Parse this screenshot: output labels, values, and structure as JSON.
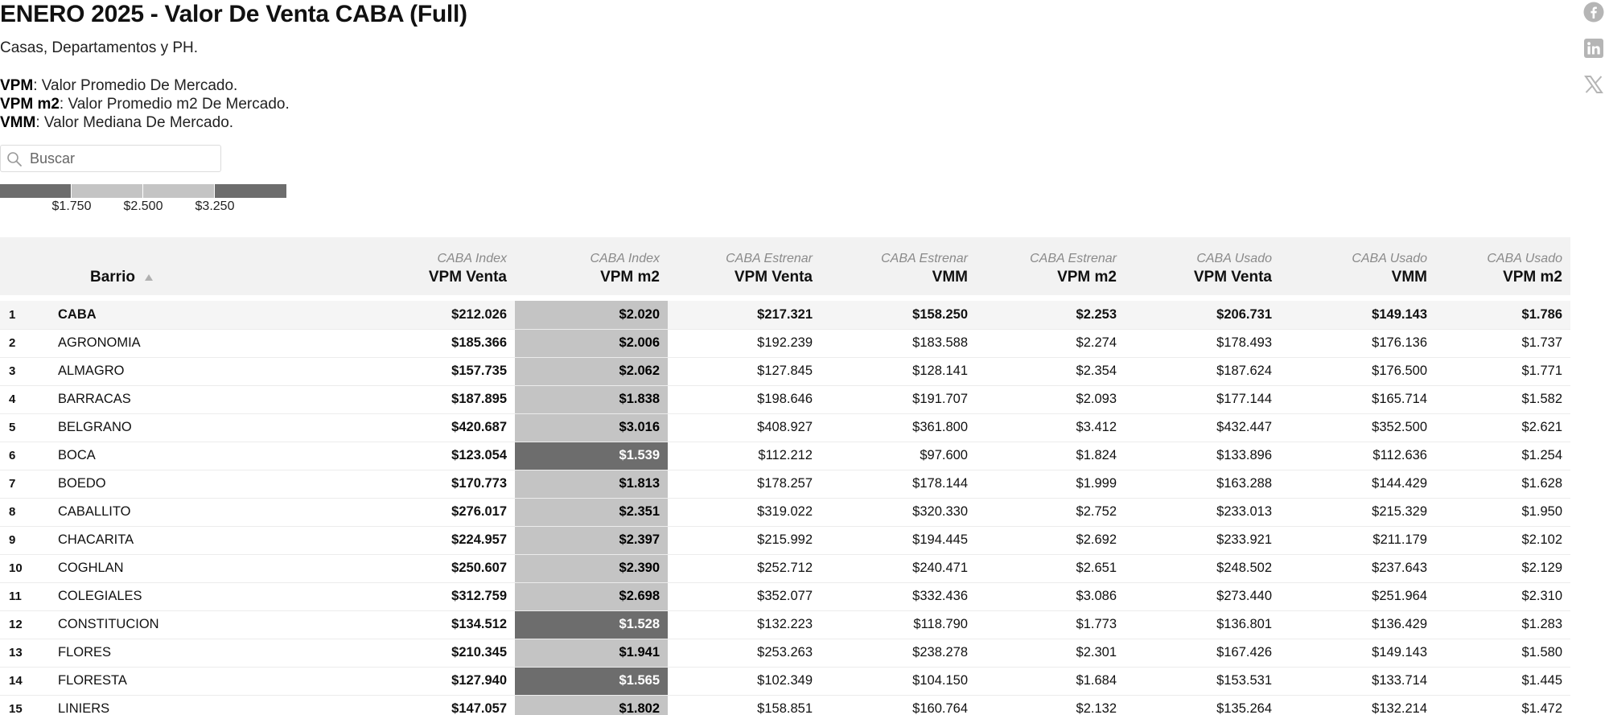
{
  "title": "ENERO 2025 - Valor De Venta CABA (Full)",
  "subtitle": "Casas, Departamentos y PH.",
  "notes": [
    {
      "abbr": "VPM",
      "text": ": Valor Promedio De Mercado."
    },
    {
      "abbr": "VPM m2",
      "text": ": Valor Promedio m2 De Mercado."
    },
    {
      "abbr": "VMM",
      "text": ": Valor Mediana De Mercado."
    }
  ],
  "search": {
    "placeholder": "Buscar",
    "value": ""
  },
  "legend": {
    "colors": [
      "#6d6d6d",
      "#c4c4c4",
      "#c4c4c4",
      "#6d6d6d"
    ],
    "labels": [
      "$1.750",
      "$2.500",
      "$3.250"
    ]
  },
  "social_icons": [
    "facebook-icon",
    "linkedin-icon",
    "x-icon"
  ],
  "table": {
    "columns": [
      {
        "sup": "",
        "label": ""
      },
      {
        "sup": "",
        "label": "Barrio",
        "sort_icon": "sort-up-icon"
      },
      {
        "sup": "CABA Index",
        "label": "VPM Venta"
      },
      {
        "sup": "CABA Index",
        "label": "VPM m2"
      },
      {
        "sup": "CABA Estrenar",
        "label": "VPM Venta"
      },
      {
        "sup": "CABA Estrenar",
        "label": "VMM"
      },
      {
        "sup": "CABA Estrenar",
        "label": "VPM m2"
      },
      {
        "sup": "CABA Usado",
        "label": "VPM Venta"
      },
      {
        "sup": "CABA Usado",
        "label": "VMM"
      },
      {
        "sup": "CABA Usado",
        "label": "VPM m2"
      }
    ],
    "rows": [
      {
        "n": "1",
        "barrio": "CABA",
        "idx_venta": "$212.026",
        "idx_m2": "$2.020",
        "m2_shade": "light",
        "est_venta": "$217.321",
        "est_vmm": "$158.250",
        "est_m2": "$2.253",
        "us_venta": "$206.731",
        "us_vmm": "$149.143",
        "us_m2": "$1.786"
      },
      {
        "n": "2",
        "barrio": "AGRONOMIA",
        "idx_venta": "$185.366",
        "idx_m2": "$2.006",
        "m2_shade": "light",
        "est_venta": "$192.239",
        "est_vmm": "$183.588",
        "est_m2": "$2.274",
        "us_venta": "$178.493",
        "us_vmm": "$176.136",
        "us_m2": "$1.737"
      },
      {
        "n": "3",
        "barrio": "ALMAGRO",
        "idx_venta": "$157.735",
        "idx_m2": "$2.062",
        "m2_shade": "light",
        "est_venta": "$127.845",
        "est_vmm": "$128.141",
        "est_m2": "$2.354",
        "us_venta": "$187.624",
        "us_vmm": "$176.500",
        "us_m2": "$1.771"
      },
      {
        "n": "4",
        "barrio": "BARRACAS",
        "idx_venta": "$187.895",
        "idx_m2": "$1.838",
        "m2_shade": "light",
        "est_venta": "$198.646",
        "est_vmm": "$191.707",
        "est_m2": "$2.093",
        "us_venta": "$177.144",
        "us_vmm": "$165.714",
        "us_m2": "$1.582"
      },
      {
        "n": "5",
        "barrio": "BELGRANO",
        "idx_venta": "$420.687",
        "idx_m2": "$3.016",
        "m2_shade": "light",
        "est_venta": "$408.927",
        "est_vmm": "$361.800",
        "est_m2": "$3.412",
        "us_venta": "$432.447",
        "us_vmm": "$352.500",
        "us_m2": "$2.621"
      },
      {
        "n": "6",
        "barrio": "BOCA",
        "idx_venta": "$123.054",
        "idx_m2": "$1.539",
        "m2_shade": "dark",
        "est_venta": "$112.212",
        "est_vmm": "$97.600",
        "est_m2": "$1.824",
        "us_venta": "$133.896",
        "us_vmm": "$112.636",
        "us_m2": "$1.254"
      },
      {
        "n": "7",
        "barrio": "BOEDO",
        "idx_venta": "$170.773",
        "idx_m2": "$1.813",
        "m2_shade": "light",
        "est_venta": "$178.257",
        "est_vmm": "$178.144",
        "est_m2": "$1.999",
        "us_venta": "$163.288",
        "us_vmm": "$144.429",
        "us_m2": "$1.628"
      },
      {
        "n": "8",
        "barrio": "CABALLITO",
        "idx_venta": "$276.017",
        "idx_m2": "$2.351",
        "m2_shade": "light",
        "est_venta": "$319.022",
        "est_vmm": "$320.330",
        "est_m2": "$2.752",
        "us_venta": "$233.013",
        "us_vmm": "$215.329",
        "us_m2": "$1.950"
      },
      {
        "n": "9",
        "barrio": "CHACARITA",
        "idx_venta": "$224.957",
        "idx_m2": "$2.397",
        "m2_shade": "light",
        "est_venta": "$215.992",
        "est_vmm": "$194.445",
        "est_m2": "$2.692",
        "us_venta": "$233.921",
        "us_vmm": "$211.179",
        "us_m2": "$2.102"
      },
      {
        "n": "10",
        "barrio": "COGHLAN",
        "idx_venta": "$250.607",
        "idx_m2": "$2.390",
        "m2_shade": "light",
        "est_venta": "$252.712",
        "est_vmm": "$240.471",
        "est_m2": "$2.651",
        "us_venta": "$248.502",
        "us_vmm": "$237.643",
        "us_m2": "$2.129"
      },
      {
        "n": "11",
        "barrio": "COLEGIALES",
        "idx_venta": "$312.759",
        "idx_m2": "$2.698",
        "m2_shade": "light",
        "est_venta": "$352.077",
        "est_vmm": "$332.436",
        "est_m2": "$3.086",
        "us_venta": "$273.440",
        "us_vmm": "$251.964",
        "us_m2": "$2.310"
      },
      {
        "n": "12",
        "barrio": "CONSTITUCION",
        "idx_venta": "$134.512",
        "idx_m2": "$1.528",
        "m2_shade": "dark",
        "est_venta": "$132.223",
        "est_vmm": "$118.790",
        "est_m2": "$1.773",
        "us_venta": "$136.801",
        "us_vmm": "$136.429",
        "us_m2": "$1.283"
      },
      {
        "n": "13",
        "barrio": "FLORES",
        "idx_venta": "$210.345",
        "idx_m2": "$1.941",
        "m2_shade": "light",
        "est_venta": "$253.263",
        "est_vmm": "$238.278",
        "est_m2": "$2.301",
        "us_venta": "$167.426",
        "us_vmm": "$149.143",
        "us_m2": "$1.580"
      },
      {
        "n": "14",
        "barrio": "FLORESTA",
        "idx_venta": "$127.940",
        "idx_m2": "$1.565",
        "m2_shade": "dark",
        "est_venta": "$102.349",
        "est_vmm": "$104.150",
        "est_m2": "$1.684",
        "us_venta": "$153.531",
        "us_vmm": "$133.714",
        "us_m2": "$1.445"
      },
      {
        "n": "15",
        "barrio": "LINIERS",
        "idx_venta": "$147.057",
        "idx_m2": "$1.802",
        "m2_shade": "light",
        "est_venta": "$158.851",
        "est_vmm": "$160.764",
        "est_m2": "$2.132",
        "us_venta": "$135.264",
        "us_vmm": "$132.214",
        "us_m2": "$1.472"
      }
    ]
  }
}
